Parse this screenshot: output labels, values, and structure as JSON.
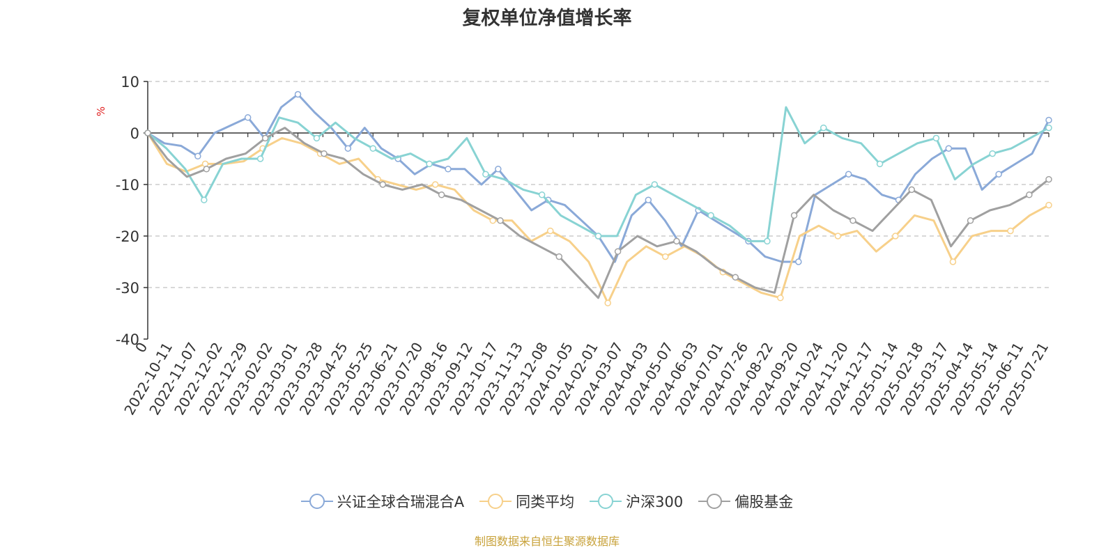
{
  "title": "复权单位净值增长率",
  "source_note": "制图数据来自恒生聚源数据库",
  "chart_data": {
    "type": "line",
    "title": "复权单位净值增长率",
    "ylabel": "%",
    "ylim": [
      -40,
      10
    ],
    "yticks": [
      10,
      0,
      -10,
      -20,
      -30,
      -40
    ],
    "grid": true,
    "legend_position": "bottom",
    "x_tick_labels": [
      "0",
      "2022-10-11",
      "2022-11-07",
      "2022-12-02",
      "2022-12-29",
      "2023-02-02",
      "2023-03-01",
      "2023-03-28",
      "2023-04-25",
      "2023-05-25",
      "2023-06-21",
      "2023-07-20",
      "2023-08-16",
      "2023-09-12",
      "2023-10-17",
      "2023-11-13",
      "2023-12-08",
      "2024-01-05",
      "2024-02-01",
      "2024-03-07",
      "2024-04-03",
      "2024-05-07",
      "2024-06-03",
      "2024-07-01",
      "2024-07-26",
      "2024-08-22",
      "2024-09-20",
      "2024-10-24",
      "2024-11-20",
      "2024-12-17",
      "2025-01-14",
      "2025-02-18",
      "2025-03-17",
      "2025-04-14",
      "2025-05-14",
      "2025-06-11",
      "2025-07-21"
    ],
    "series": [
      {
        "name": "兴证全球合瑞混合A",
        "color": "#8aa9d8",
        "values": [
          0,
          -2,
          -2.5,
          -4.5,
          0,
          1.5,
          3,
          -1,
          5,
          7.5,
          4,
          1,
          -3,
          1,
          -3,
          -5,
          -8,
          -6,
          -7,
          -7,
          -10,
          -7,
          -11,
          -15,
          -13,
          -14,
          -17,
          -20,
          -25,
          -16,
          -13,
          -17,
          -22,
          -15,
          -17,
          -19,
          -21,
          -24,
          -25,
          -25,
          -12,
          -10,
          -8,
          -9,
          -12,
          -13,
          -8,
          -5,
          -3,
          -3,
          -11,
          -8,
          -6,
          -4,
          2.5
        ]
      },
      {
        "name": "同类平均",
        "color": "#f7d08a",
        "values": [
          0,
          -6,
          -7.5,
          -6,
          -6,
          -5.5,
          -3,
          -1,
          -2,
          -4,
          -6,
          -5,
          -9,
          -10,
          -11,
          -10,
          -11,
          -15,
          -17,
          -17,
          -21,
          -19,
          -21,
          -25,
          -33,
          -25,
          -22,
          -24,
          -22,
          -24,
          -27,
          -29,
          -31,
          -32,
          -20,
          -18,
          -20,
          -19,
          -23,
          -20,
          -16,
          -17,
          -25,
          -20,
          -19,
          -19,
          -16,
          -14
        ]
      },
      {
        "name": "沪深300",
        "color": "#88d3d3",
        "values": [
          0,
          -3,
          -7,
          -13,
          -6,
          -5,
          -5,
          3,
          2,
          -1,
          2,
          -1,
          -3,
          -5,
          -4,
          -6,
          -5,
          -1,
          -8,
          -9,
          -11,
          -12,
          -16,
          -18,
          -20,
          -20,
          -12,
          -10,
          -12,
          -14,
          -16,
          -18,
          -21,
          -21,
          5,
          -2,
          1,
          -1,
          -2,
          -6,
          -4,
          -2,
          -1,
          -9,
          -6,
          -4,
          -3,
          -1,
          1
        ]
      },
      {
        "name": "偏股基金",
        "color": "#a0a0a0",
        "values": [
          0,
          -5,
          -8.5,
          -7,
          -5,
          -4,
          -1,
          1,
          -2,
          -4,
          -5,
          -8,
          -10,
          -11,
          -10,
          -12,
          -13,
          -15,
          -17,
          -20,
          -22,
          -24,
          -28,
          -32,
          -23,
          -20,
          -22,
          -21,
          -23,
          -26,
          -28,
          -30,
          -31,
          -16,
          -12,
          -15,
          -17,
          -19,
          -15,
          -11,
          -13,
          -22,
          -17,
          -15,
          -14,
          -12,
          -9
        ]
      }
    ]
  },
  "legend": [
    {
      "label": "兴证全球合瑞混合A",
      "color": "#8aa9d8"
    },
    {
      "label": "同类平均",
      "color": "#f7d08a"
    },
    {
      "label": "沪深300",
      "color": "#88d3d3"
    },
    {
      "label": "偏股基金",
      "color": "#a0a0a0"
    }
  ]
}
